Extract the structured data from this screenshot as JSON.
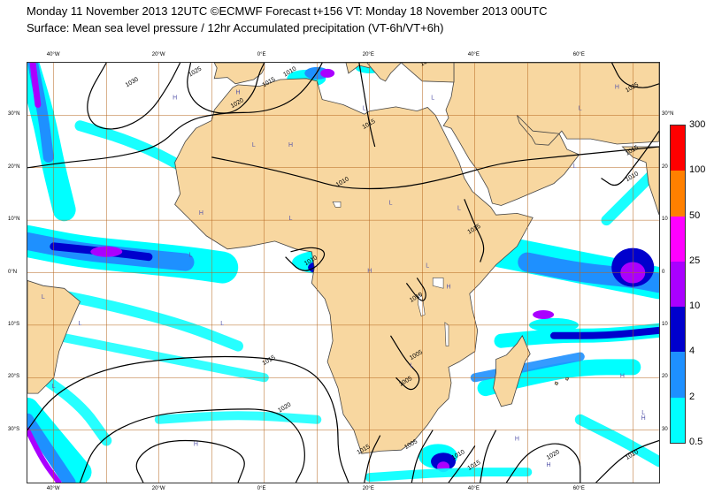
{
  "header": {
    "line1": "Monday 11 November 2013 12UTC ©ECMWF Forecast t+156 VT: Monday 18 November 2013 00UTC",
    "line2": "Surface: Mean sea level pressure / 12hr Accumulated precipitation (VT-6h/VT+6h)"
  },
  "map": {
    "projection": "lat-lon",
    "lon_range": [
      -45,
      75
    ],
    "lat_range": [
      -40,
      40
    ],
    "lon_grid_labels": [
      "40°W",
      "20°W",
      "0°E",
      "20°E",
      "40°E",
      "60°E"
    ],
    "lon_grid_values": [
      -40,
      -20,
      0,
      20,
      40,
      60
    ],
    "lat_grid_labels": [
      "30°N",
      "20°N",
      "10°N",
      "0°N",
      "10°S",
      "20°S",
      "30°S"
    ],
    "lat_grid_values": [
      30,
      20,
      10,
      0,
      -10,
      -20,
      -30
    ],
    "right_lat_labels": [
      "30°N",
      "20",
      "10",
      "0",
      "10",
      "20",
      "30"
    ],
    "isobar_labels": [
      {
        "text": "1030",
        "lon": -25,
        "lat": 36
      },
      {
        "text": "1025",
        "lon": -13,
        "lat": 38
      },
      {
        "text": "1020",
        "lon": -5,
        "lat": 32
      },
      {
        "text": "1015",
        "lon": 20,
        "lat": 28
      },
      {
        "text": "1010",
        "lon": 15,
        "lat": 17
      },
      {
        "text": "1015",
        "lon": 70,
        "lat": 23
      },
      {
        "text": "1010",
        "lon": 70,
        "lat": 18
      },
      {
        "text": "1025",
        "lon": 70,
        "lat": 35
      },
      {
        "text": "1015",
        "lon": 1,
        "lat": -17
      },
      {
        "text": "1020",
        "lon": 4,
        "lat": -26
      },
      {
        "text": "1010",
        "lon": 9,
        "lat": 2
      },
      {
        "text": "1010",
        "lon": 29,
        "lat": -5
      },
      {
        "text": "1015",
        "lon": 40,
        "lat": 8
      },
      {
        "text": "1005",
        "lon": 29,
        "lat": -16
      },
      {
        "text": "1005",
        "lon": 27,
        "lat": -21
      },
      {
        "text": "1015",
        "lon": 19,
        "lat": -34
      },
      {
        "text": "1005",
        "lon": 28,
        "lat": -33
      },
      {
        "text": "1010",
        "lon": 37,
        "lat": -35
      },
      {
        "text": "1015",
        "lon": 40,
        "lat": -37
      },
      {
        "text": "1020",
        "lon": 55,
        "lat": -35
      },
      {
        "text": "1010",
        "lon": 70,
        "lat": -35
      },
      {
        "text": "1015",
        "lon": 31,
        "lat": 40
      },
      {
        "text": "1010",
        "lon": 5,
        "lat": 38
      },
      {
        "text": "1015",
        "lon": 1,
        "lat": 36
      }
    ],
    "pressure_centres": [
      {
        "text": "H",
        "lon": -17,
        "lat": 33
      },
      {
        "text": "H",
        "lon": -5,
        "lat": 34
      },
      {
        "text": "L",
        "lon": -2,
        "lat": 24
      },
      {
        "text": "H",
        "lon": 5,
        "lat": 24
      },
      {
        "text": "H",
        "lon": -12,
        "lat": 11
      },
      {
        "text": "L",
        "lon": 5,
        "lat": 10
      },
      {
        "text": "L",
        "lon": 24,
        "lat": 13
      },
      {
        "text": "L",
        "lon": 37,
        "lat": 12
      },
      {
        "text": "L",
        "lon": 19,
        "lat": 31
      },
      {
        "text": "L",
        "lon": 32,
        "lat": 33
      },
      {
        "text": "L",
        "lon": 60,
        "lat": 31
      },
      {
        "text": "L",
        "lon": 59,
        "lat": 20
      },
      {
        "text": "H",
        "lon": 67,
        "lat": 35
      },
      {
        "text": "L",
        "lon": -14,
        "lat": 3
      },
      {
        "text": "H",
        "lon": 20,
        "lat": 0
      },
      {
        "text": "L",
        "lon": 31,
        "lat": 1
      },
      {
        "text": "L",
        "lon": -42,
        "lat": -5
      },
      {
        "text": "L",
        "lon": -35,
        "lat": -10
      },
      {
        "text": "L",
        "lon": -40,
        "lat": -22
      },
      {
        "text": "L",
        "lon": -8,
        "lat": -10
      },
      {
        "text": "L",
        "lon": 28,
        "lat": -18
      },
      {
        "text": "H",
        "lon": 35,
        "lat": -3
      },
      {
        "text": "H",
        "lon": -13,
        "lat": -33
      },
      {
        "text": "H",
        "lon": 48,
        "lat": -32
      },
      {
        "text": "H",
        "lon": 54,
        "lat": -37
      },
      {
        "text": "L",
        "lon": 72,
        "lat": -27
      },
      {
        "text": "H",
        "lon": 68,
        "lat": -20
      },
      {
        "text": "H",
        "lon": 72,
        "lat": -28
      }
    ],
    "colors": {
      "land": "#f8d7a0",
      "ocean": "#ffffff",
      "coast": "#444444",
      "grid": "#b5651d",
      "isobar": "#000000",
      "centre": "#5555aa"
    }
  },
  "legend": {
    "labels": [
      "300",
      "100",
      "50",
      "25",
      "10",
      "4",
      "2",
      "0.5"
    ],
    "colors": [
      "#ff0000",
      "#ff8000",
      "#ff00ff",
      "#aa00ff",
      "#0000cd",
      "#1e90ff",
      "#00ffff"
    ]
  }
}
